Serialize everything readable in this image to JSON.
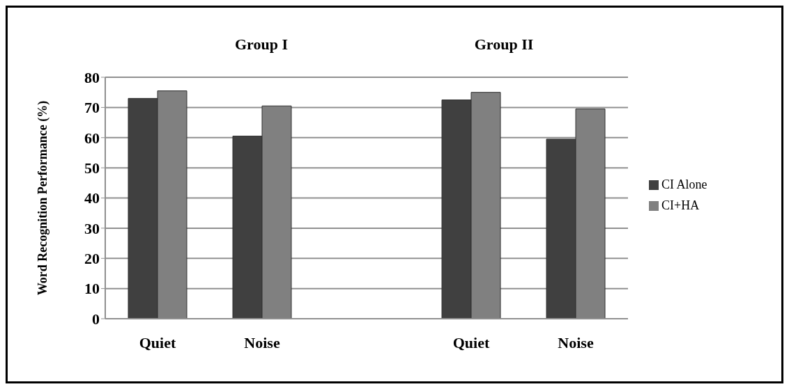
{
  "chart_data": {
    "type": "bar",
    "ylabel": "Word Recognition Performance (%)",
    "annotations": [
      "Group I",
      "Group II"
    ],
    "categories": [
      "Quiet",
      "Noise",
      null,
      "Quiet",
      "Noise"
    ],
    "series": [
      {
        "name": "CI Alone",
        "color": "#404040",
        "values": [
          73,
          60.5,
          0,
          72.5,
          59.5
        ]
      },
      {
        "name": "CI+HA",
        "color": "#808080",
        "values": [
          75.5,
          70.5,
          0,
          75,
          69.5
        ]
      }
    ],
    "ylim": [
      0,
      80
    ],
    "yticks": [
      0,
      10,
      20,
      30,
      40,
      50,
      60,
      70,
      80
    ],
    "grid": "y",
    "legend": "right"
  }
}
